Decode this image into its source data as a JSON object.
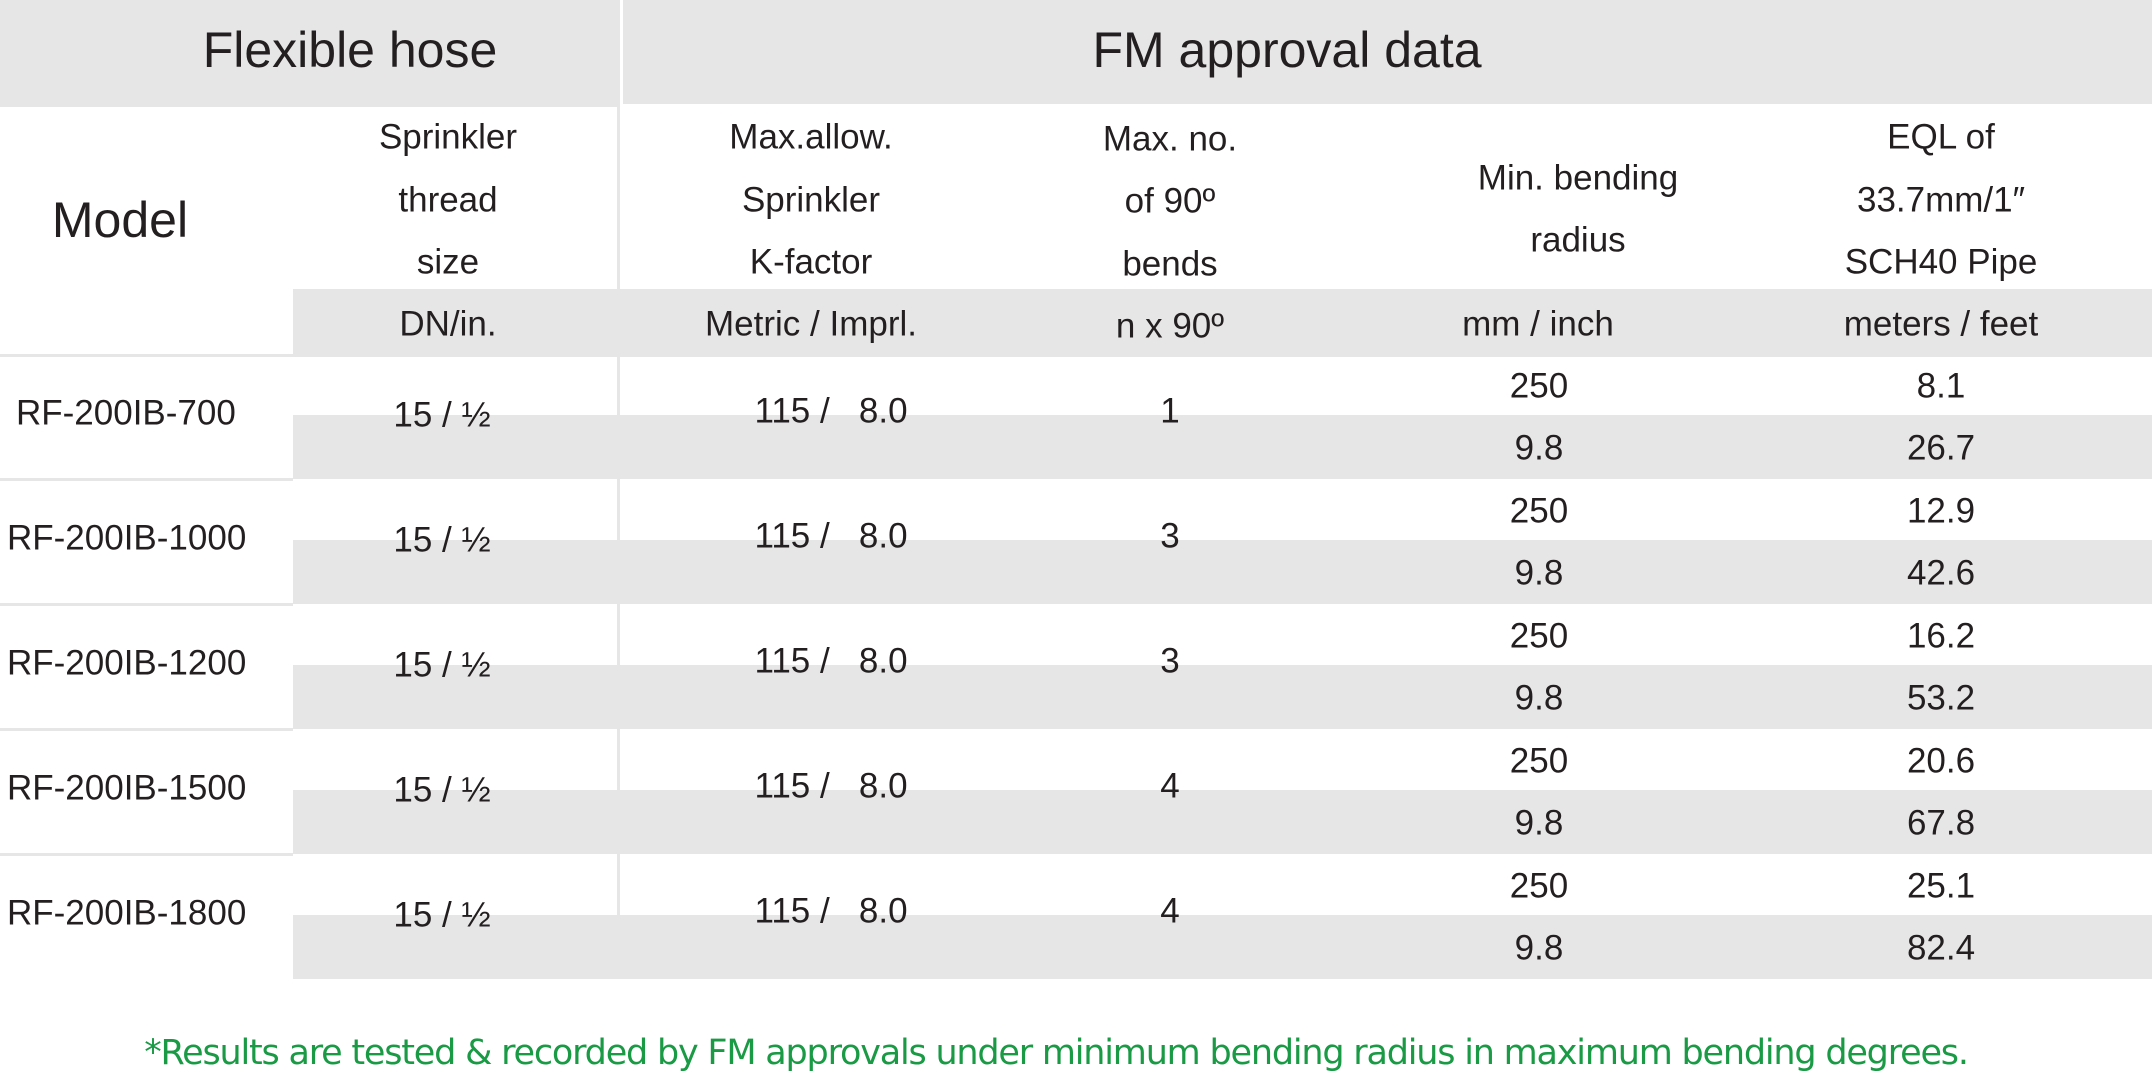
{
  "colors": {
    "band_gray": "#e6e6e7",
    "text": "#231f20",
    "footnote_green": "#1a9a45"
  },
  "header": {
    "group_left": "Flexible hose",
    "group_right": "FM approval data",
    "model": "Model",
    "thread": [
      "Sprinkler",
      "thread",
      "size"
    ],
    "kfactor": [
      "Max.allow.",
      "Sprinkler",
      "K-factor"
    ],
    "bends": [
      "Max. no.",
      "of 90º",
      "bends"
    ],
    "radius": [
      "Min. bending",
      "radius"
    ],
    "eql": [
      "EQL of",
      "33.7mm/1″",
      "SCH40 Pipe"
    ]
  },
  "units": {
    "thread": "DN/in.",
    "kfactor": "Metric / Imprl.",
    "bends": "n x 90º",
    "radius": "mm / inch",
    "eql": "meters / feet"
  },
  "rows": [
    {
      "model": "RF-200IB-700",
      "thread": "15 / ½",
      "kfactor": "115 /   8.0",
      "bends": "1",
      "radius_mm": "250",
      "radius_in": "9.8",
      "eql_m": "8.1",
      "eql_ft": "26.7"
    },
    {
      "model": "RF-200IB-1000",
      "thread": "15 / ½",
      "kfactor": "115 /   8.0",
      "bends": "3",
      "radius_mm": "250",
      "radius_in": "9.8",
      "eql_m": "12.9",
      "eql_ft": "42.6"
    },
    {
      "model": "RF-200IB-1200",
      "thread": "15 / ½",
      "kfactor": "115 /   8.0",
      "bends": "3",
      "radius_mm": "250",
      "radius_in": "9.8",
      "eql_m": "16.2",
      "eql_ft": "53.2"
    },
    {
      "model": "RF-200IB-1500",
      "thread": "15 / ½",
      "kfactor": "115 /   8.0",
      "bends": "4",
      "radius_mm": "250",
      "radius_in": "9.8",
      "eql_m": "20.6",
      "eql_ft": "67.8"
    },
    {
      "model": "RF-200IB-1800",
      "thread": "15 / ½",
      "kfactor": "115 /   8.0",
      "bends": "4",
      "radius_mm": "250",
      "radius_in": "9.8",
      "eql_m": "25.1",
      "eql_ft": "82.4"
    }
  ],
  "footnote": "*Results are tested & recorded by FM approvals under minimum bending radius in maximum bending degrees."
}
